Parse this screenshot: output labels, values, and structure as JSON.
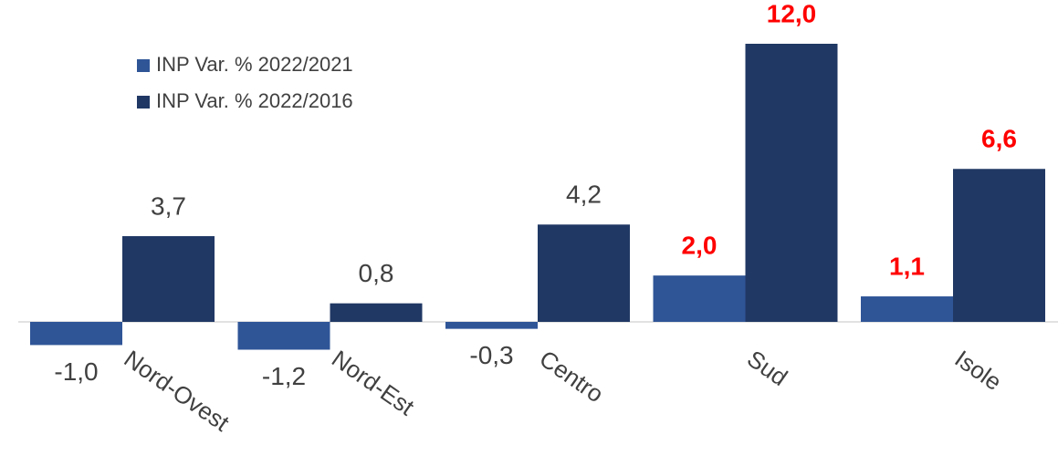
{
  "chart_data": {
    "type": "bar",
    "categories": [
      "Nord-Ovest",
      "Nord-Est",
      "Centro",
      "Sud",
      "Isole"
    ],
    "series": [
      {
        "name": "INP Var. % 2022/2021",
        "color": "#2f5597",
        "values": [
          -1.0,
          -1.2,
          -0.3,
          2.0,
          1.1
        ],
        "value_labels": [
          "-1,0",
          "-1,2",
          "-0,3",
          "2,0",
          "1,1"
        ],
        "label_colors": [
          "#404040",
          "#404040",
          "#404040",
          "#ff0000",
          "#ff0000"
        ]
      },
      {
        "name": "INP Var. % 2022/2016",
        "color": "#203864",
        "values": [
          3.7,
          0.8,
          4.2,
          12.0,
          6.6
        ],
        "value_labels": [
          "3,7",
          "0,8",
          "4,2",
          "12,0",
          "6,6"
        ],
        "label_colors": [
          "#404040",
          "#404040",
          "#404040",
          "#ff0000",
          "#ff0000"
        ]
      }
    ],
    "legend": "top-left"
  }
}
